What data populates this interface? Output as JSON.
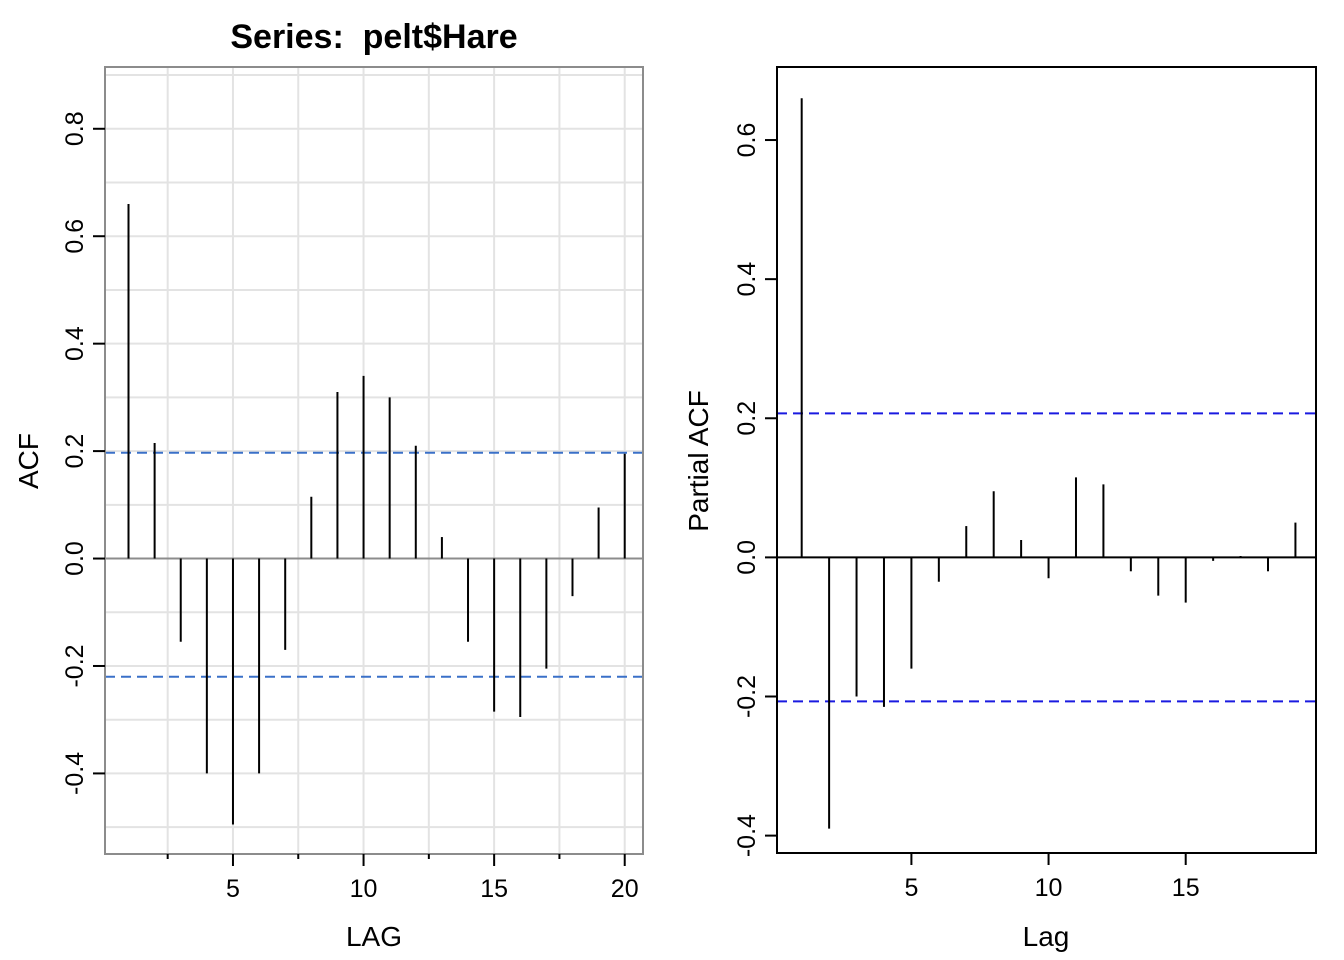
{
  "chart_data": [
    {
      "type": "bar",
      "title": "Series:  pelt$Hare",
      "xlabel": "LAG",
      "ylabel": "ACF",
      "x": [
        1,
        2,
        3,
        4,
        5,
        6,
        7,
        8,
        9,
        10,
        11,
        12,
        13,
        14,
        15,
        16,
        17,
        18,
        19,
        20
      ],
      "values": [
        0.66,
        0.215,
        -0.155,
        -0.4,
        -0.495,
        -0.4,
        -0.17,
        0.115,
        0.31,
        0.34,
        0.3,
        0.21,
        0.04,
        -0.155,
        -0.285,
        -0.295,
        -0.205,
        -0.07,
        0.095,
        0.195
      ],
      "xlim": [
        0.1,
        20.7
      ],
      "ylim": [
        -0.55,
        0.915
      ],
      "xticks": [
        "5",
        "10",
        "15",
        "20"
      ],
      "xtick_values": [
        5,
        10,
        15,
        20
      ],
      "minor_xtick_values": [
        2.5,
        7.5,
        12.5,
        17.5
      ],
      "yticks": [
        "-0.4",
        "-0.2",
        "0.0",
        "0.2",
        "0.4",
        "0.6",
        "0.8"
      ],
      "ytick_values": [
        -0.4,
        -0.2,
        0.0,
        0.2,
        0.4,
        0.6,
        0.8
      ],
      "ci_upper": 0.197,
      "ci_lower": -0.22,
      "grid": true,
      "colors": {
        "bars": "#000000",
        "ci": "#3a70c8",
        "grid": "#e3e3e3",
        "frame": "#8c8c8c"
      }
    },
    {
      "type": "bar",
      "title": "",
      "xlabel": "Lag",
      "ylabel": "Partial ACF",
      "x": [
        1,
        2,
        3,
        4,
        5,
        6,
        7,
        8,
        9,
        10,
        11,
        12,
        13,
        14,
        15,
        16,
        17,
        18,
        19
      ],
      "values": [
        0.66,
        -0.39,
        -0.2,
        -0.215,
        -0.16,
        -0.035,
        0.045,
        0.095,
        0.025,
        -0.03,
        0.115,
        0.105,
        -0.02,
        -0.055,
        -0.065,
        -0.005,
        0.002,
        -0.02,
        0.05
      ],
      "xlim": [
        0.1,
        19.75
      ],
      "ylim": [
        -0.425,
        0.705
      ],
      "xticks": [
        "5",
        "10",
        "15"
      ],
      "xtick_values": [
        5,
        10,
        15
      ],
      "yticks": [
        "-0.4",
        "-0.2",
        "0.0",
        "0.2",
        "0.4",
        "0.6"
      ],
      "ytick_values": [
        -0.4,
        -0.2,
        0.0,
        0.2,
        0.4,
        0.6
      ],
      "ci_upper": 0.207,
      "ci_lower": -0.207,
      "grid": false,
      "colors": {
        "bars": "#000000",
        "ci": "#1a1ae0",
        "frame": "#000000"
      }
    }
  ]
}
